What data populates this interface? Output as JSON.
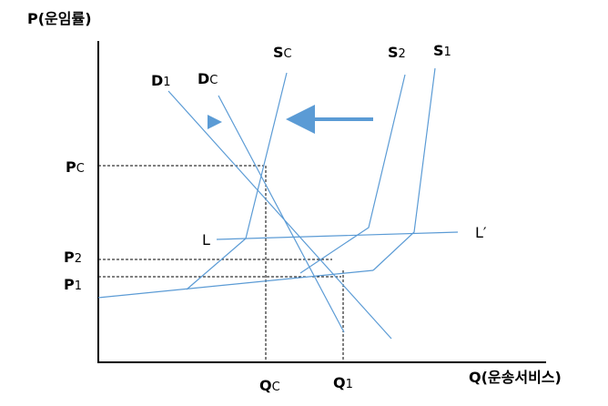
{
  "axes": {
    "y_label": "P(운임률)",
    "x_label": "Q(운송서비스)"
  },
  "curves": {
    "sc": {
      "main": "S",
      "sub": "C"
    },
    "s2": {
      "main": "S",
      "sub": "2"
    },
    "s1": {
      "main": "S",
      "sub": "1"
    },
    "d1": {
      "main": "D",
      "sub": "1"
    },
    "dc": {
      "main": "D",
      "sub": "C"
    },
    "l": "L",
    "l_prime": "L′"
  },
  "levels": {
    "pc": {
      "main": "P",
      "sub": "C"
    },
    "p2": {
      "main": "P",
      "sub": "2"
    },
    "p1": {
      "main": "P",
      "sub": "1"
    },
    "qc": {
      "main": "Q",
      "sub": "C"
    },
    "q1": {
      "main": "Q",
      "sub": "1"
    }
  }
}
